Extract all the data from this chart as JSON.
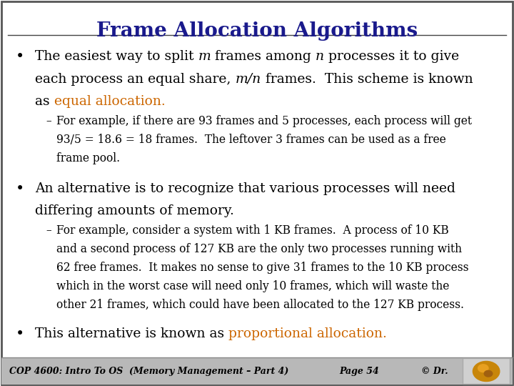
{
  "title": "Frame Allocation Algorithms",
  "title_color": "#1a1a8c",
  "title_fontsize": 20,
  "slide_bg": "#ffffff",
  "border_color": "#333333",
  "body_fontsize": 13.5,
  "sub_fontsize": 11.2,
  "highlight_color": "#cc6600",
  "text_color": "#000000",
  "footer_bg": "#b0b0b0",
  "footer_text": "COP 4600: Intro To OS  (Memory Management – Part 4)",
  "footer_page": "Page 54",
  "footer_copy": "© Dr.",
  "footer_fontsize": 9.0
}
